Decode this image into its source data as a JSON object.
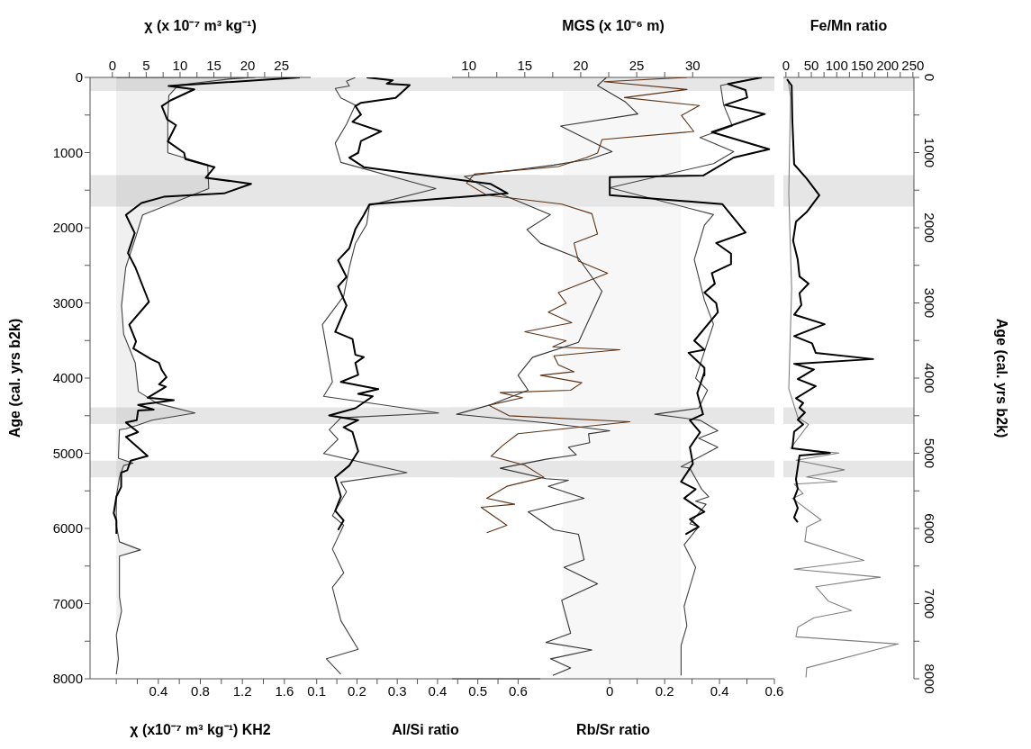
{
  "chart_data": [
    {
      "type": "line",
      "xlabel": "χ (x10⁻⁷ m³ kg⁻¹) KH2",
      "x2label": "χ (x 10⁻⁷ m³ kg⁻¹)",
      "ylabel": "Age (cal. yrs b2k)",
      "xlim": [
        -0.25,
        1.85
      ],
      "xticks": [
        {
          "value": 0,
          "label": null
        },
        {
          "value": 0.2,
          "label": null
        },
        0.4,
        {
          "value": 0.6,
          "label": null
        },
        0.8,
        {
          "value": 1.0,
          "label": null
        },
        1.2,
        {
          "value": 1.4,
          "label": null
        },
        1.6
      ],
      "x2lim": [
        -3.3,
        29.3
      ],
      "x2ticks": [
        0,
        {
          "value": 2.5,
          "label": null
        },
        5,
        {
          "value": 7.5,
          "label": null
        },
        10,
        {
          "value": 12.5,
          "label": null
        },
        15,
        {
          "value": 17.5,
          "label": null
        },
        20,
        {
          "value": 22.5,
          "label": null
        },
        25
      ],
      "ylim": [
        8000,
        0
      ],
      "yticks": [
        0,
        {
          "value": 500,
          "label": null
        },
        1000,
        {
          "value": 1500,
          "label": null
        },
        2000,
        {
          "value": 2500,
          "label": null
        },
        3000,
        {
          "value": 3500,
          "label": null
        },
        4000,
        {
          "value": 4500,
          "label": null
        },
        5000,
        {
          "value": 5500,
          "label": null
        },
        6000,
        {
          "value": 6500,
          "label": null
        },
        7000,
        {
          "value": 7500,
          "label": null
        },
        8000
      ],
      "bands": [
        {
          "axis": "y",
          "from": 0,
          "to": 180,
          "color": "#e6e6e6"
        },
        {
          "axis": "y",
          "from": 1300,
          "to": 1720,
          "color": "#e6e6e6"
        },
        {
          "axis": "y",
          "from": 4390,
          "to": 4610,
          "color": "#e6e6e6"
        },
        {
          "axis": "y",
          "from": 5100,
          "to": 5320,
          "color": "#e6e6e6"
        }
      ],
      "grid": false,
      "legend": false,
      "series": [
        {
          "type": "area",
          "color": "#404040",
          "x": [
            1.32,
            1.09,
            0.59,
            0.5,
            0.49,
            0.49,
            0.87,
            0.88,
            0.25,
            0.18,
            0.09,
            0.05,
            0.07,
            0.18,
            0.21,
            0.39,
            0.75,
            0.34,
            0.21,
            0.09,
            0.03,
            0.02,
            0.16,
            0.07,
            0.03,
            0.0,
            0.0,
            0.03,
            0.23,
            0.03,
            0.03,
            0.05,
            0.0,
            0.02,
            0.0
          ],
          "values": [
            0,
            19,
            102,
            241,
            559,
            1003,
            1162,
            1480,
            1829,
            2146,
            2527,
            3035,
            3416,
            3797,
            4178,
            4337,
            4464,
            4559,
            4623,
            4674,
            4686,
            5067,
            5131,
            5163,
            5321,
            5575,
            5956,
            6178,
            6286,
            6369,
            6909,
            7099,
            7417,
            7734,
            7938
          ]
        },
        {
          "axis": "x2",
          "color": "#000000",
          "x": [
            27.7,
            8.3,
            12.1,
            8.6,
            7.3,
            8.1,
            9.4,
            8.2,
            10.6,
            10.8,
            15.1,
            13.8,
            20.5,
            16.5,
            7.6,
            4.3,
            2.0,
            3.3,
            2.3,
            3.4,
            5.4,
            2.5,
            3.5,
            3.1,
            5.7,
            6.9,
            7.3,
            8.0,
            6.9,
            7.9,
            5.2,
            9.1,
            3.8,
            6.1,
            3.8,
            3.6,
            2.0,
            3.8,
            2.0,
            5.2,
            2.7,
            2.2,
            1.3,
            1.3,
            0.6,
            0.2,
            0.6,
            0.6
          ],
          "values": [
            0,
            114,
            159,
            305,
            381,
            559,
            635,
            851,
            1003,
            1086,
            1194,
            1334,
            1416,
            1543,
            1588,
            1670,
            1829,
            2070,
            2337,
            2527,
            2985,
            3289,
            3512,
            3607,
            3747,
            3797,
            3893,
            3988,
            4083,
            4115,
            4261,
            4293,
            4356,
            4420,
            4432,
            4559,
            4591,
            4718,
            4782,
            5036,
            5099,
            5226,
            5258,
            5448,
            5575,
            5798,
            5893,
            6071
          ]
        }
      ]
    },
    {
      "type": "line",
      "xlabel": "Al/Si ratio",
      "tick_labels": "x",
      "xlim": [
        0.085,
        0.655
      ],
      "xticks": [
        0.1,
        {
          "value": 0.15,
          "label": null
        },
        0.2,
        {
          "value": 0.25,
          "label": null
        },
        0.3,
        {
          "value": 0.35,
          "label": null
        },
        0.4,
        {
          "value": 0.45,
          "label": null
        },
        0.5,
        {
          "value": 0.55,
          "label": null
        },
        0.6
      ],
      "ylim": [
        8000,
        0
      ],
      "yticks": [
        0,
        1000,
        2000,
        3000,
        4000,
        5000,
        6000,
        7000,
        8000
      ],
      "bands": [
        {
          "axis": "y",
          "from": 0,
          "to": 180,
          "color": "#e6e6e6"
        },
        {
          "axis": "y",
          "from": 1300,
          "to": 1720,
          "color": "#e6e6e6"
        },
        {
          "axis": "y",
          "from": 4390,
          "to": 4610,
          "color": "#e6e6e6"
        },
        {
          "axis": "y",
          "from": 5100,
          "to": 5320,
          "color": "#e6e6e6"
        }
      ],
      "grid": false,
      "legend": false,
      "series": [
        {
          "color": "#404040",
          "x": [
            0.196,
            0.174,
            0.181,
            0.146,
            0.16,
            0.196,
            0.174,
            0.146,
            0.16,
            0.396,
            0.231,
            0.224,
            0.196,
            0.181,
            0.167,
            0.114,
            0.131,
            0.139,
            0.117,
            0.403,
            0.16,
            0.131,
            0.153,
            0.117,
            0.324,
            0.16,
            0.174,
            0.139,
            0.167,
            0.139,
            0.167,
            0.139,
            0.16,
            0.203,
            0.124,
            0.16
          ],
          "values": [
            0,
            51,
            114,
            146,
            273,
            368,
            622,
            876,
            1130,
            1480,
            1702,
            1956,
            2210,
            2527,
            2908,
            3289,
            3797,
            4051,
            4242,
            4464,
            4528,
            4686,
            4813,
            5004,
            5258,
            5385,
            5512,
            5829,
            5956,
            6274,
            6591,
            6782,
            7226,
            7607,
            7734,
            7938
          ]
        },
        {
          "color": "#000000",
          "x": [
            0.224,
            0.289,
            0.274,
            0.331,
            0.296,
            0.21,
            0.196,
            0.21,
            0.189,
            0.26,
            0.21,
            0.203,
            0.181,
            0.217,
            0.531,
            0.574,
            0.231,
            0.217,
            0.196,
            0.181,
            0.153,
            0.174,
            0.153,
            0.174,
            0.146,
            0.189,
            0.196,
            0.217,
            0.196,
            0.203,
            0.16,
            0.253,
            0.203,
            0.239,
            0.196,
            0.131,
            0.203,
            0.167,
            0.189,
            0.203,
            0.181,
            0.146,
            0.16,
            0.146,
            0.167,
            0.153
          ],
          "values": [
            0,
            38,
            83,
            102,
            273,
            337,
            381,
            495,
            591,
            718,
            845,
            1003,
            1067,
            1194,
            1416,
            1543,
            1689,
            1829,
            2019,
            2273,
            2432,
            2654,
            2781,
            3035,
            3384,
            3480,
            3690,
            3720,
            3797,
            3956,
            4051,
            4147,
            4210,
            4242,
            4401,
            4496,
            4559,
            4655,
            4718,
            4972,
            5163,
            5321,
            5575,
            5766,
            5893,
            6020
          ]
        }
      ]
    },
    {
      "type": "line",
      "xlabel": "Rb/Sr ratio",
      "x2label": "MGS (x 10⁻⁶ m)",
      "tick_labels": "x",
      "xlim": [
        -0.575,
        0.6
      ],
      "xticks": [
        0,
        {
          "value": 0.1,
          "label": null
        },
        0.2,
        {
          "value": 0.3,
          "label": null
        },
        0.4,
        {
          "value": 0.5,
          "label": null
        },
        0.6
      ],
      "x2lim": [
        8.5,
        37.3
      ],
      "x2ticks": [
        10,
        {
          "value": 12.5,
          "label": null
        },
        15,
        {
          "value": 17.5,
          "label": null
        },
        20,
        {
          "value": 22.5,
          "label": null
        },
        25,
        {
          "value": 27.5,
          "label": null
        },
        30
      ],
      "ylim": [
        8000,
        0
      ],
      "yticks": [
        0,
        1000,
        2000,
        3000,
        4000,
        5000,
        6000,
        7000,
        8000
      ],
      "bands": [
        {
          "axis": "x",
          "from": -0.17,
          "to": 0.26,
          "color": "#f7f7f7"
        },
        {
          "axis": "y",
          "from": 0,
          "to": 180,
          "color": "#e6e6e6"
        },
        {
          "axis": "y",
          "from": 1300,
          "to": 1720,
          "color": "#e6e6e6"
        },
        {
          "axis": "y",
          "from": 4390,
          "to": 4610,
          "color": "#e6e6e6"
        },
        {
          "axis": "y",
          "from": 5100,
          "to": 5320,
          "color": "#e6e6e6"
        }
      ],
      "grid": false,
      "legend": false,
      "series": [
        {
          "axis": "x2",
          "color": "#333333",
          "x": [
            22.3,
            21.5,
            24.0,
            25.1,
            18.2,
            22.8,
            20.8,
            17.6,
            9.6,
            11.8,
            17.3,
            15.2,
            16.4,
            19.8,
            21.9,
            19.8,
            15.7,
            14.4,
            15.3,
            11.8,
            8.9,
            17.3,
            22.6,
            20.7,
            20.8,
            18.9,
            19.6,
            16.9,
            12.8,
            16.9,
            18.9,
            17.1,
            20.3,
            15.3,
            17.6,
            19.8,
            20.3,
            18.5,
            21.5,
            18.3,
            19.1,
            16.9,
            21.0,
            17.3,
            19.1,
            17.5
          ],
          "values": [
            0,
            108,
            327,
            487,
            647,
            987,
            1086,
            1166,
            1318,
            1486,
            1825,
            2025,
            2205,
            2404,
            2844,
            3523,
            3723,
            3963,
            4161,
            4361,
            4481,
            4601,
            4701,
            4741,
            4860,
            4920,
            5020,
            5079,
            5199,
            5339,
            5359,
            5439,
            5598,
            5778,
            6018,
            6078,
            6417,
            6517,
            6737,
            6956,
            7396,
            7516,
            7616,
            7735,
            7855,
            7955
          ]
        },
        {
          "axis": "x2",
          "color": "#5c3317",
          "x": [
            29.5,
            22.1,
            29.5,
            23.9,
            30.6,
            29.0,
            30.1,
            21.9,
            21.5,
            20.5,
            18.0,
            10.5,
            9.8,
            11.6,
            18.3,
            21.0,
            21.5,
            19.4,
            19.8,
            22.4,
            18.0,
            18.7,
            17.1,
            19.2,
            15.0,
            18.7,
            17.5,
            23.5,
            17.6,
            18.0,
            19.4,
            16.4,
            20.1,
            19.1,
            12.8,
            14.8,
            11.8,
            13.6,
            24.4,
            14.4,
            13.0,
            12.0,
            15.0,
            16.7,
            13.4,
            11.6,
            14.1,
            11.1,
            13.4,
            11.6
          ],
          "values": [
            0,
            56,
            160,
            268,
            375,
            507,
            719,
            827,
            1006,
            1066,
            1186,
            1286,
            1406,
            1565,
            1685,
            1813,
            2084,
            2204,
            2444,
            2604,
            2863,
            3003,
            3123,
            3263,
            3383,
            3503,
            3583,
            3623,
            3703,
            3823,
            3915,
            3963,
            4061,
            4161,
            4193,
            4261,
            4361,
            4501,
            4580,
            4740,
            4900,
            5039,
            5159,
            5319,
            5439,
            5598,
            5678,
            5718,
            5958,
            6058
          ]
        },
        {
          "color": "#404040",
          "x": [
            0.549,
            0.404,
            0.415,
            0.447,
            0.329,
            0.452,
            0.378,
            0.0,
            0.378,
            0.345,
            0.308,
            0.345,
            0.378,
            0.313,
            0.356,
            0.324,
            0.164,
            0.329,
            0.394,
            0.324,
            0.394,
            0.26,
            0.292,
            0.335,
            0.361,
            0.313,
            0.351,
            0.292,
            0.324,
            0.271,
            0.313,
            0.271,
            0.281,
            0.26,
            0.26
          ],
          "values": [
            0,
            108,
            367,
            647,
            799,
            987,
            1146,
            1466,
            1825,
            1965,
            2424,
            2963,
            3283,
            4002,
            4161,
            4401,
            4481,
            4561,
            4700,
            4800,
            4920,
            5179,
            5199,
            5478,
            5578,
            5638,
            5678,
            5937,
            5977,
            6217,
            6517,
            7036,
            7296,
            7555,
            7955
          ]
        },
        {
          "color": "#000000",
          "x": [
            0.554,
            0.431,
            0.495,
            0.501,
            0.42,
            0.565,
            0.372,
            0.581,
            0.452,
            0.34,
            0.0,
            0.0,
            0.41,
            0.495,
            0.388,
            0.442,
            0.442,
            0.372,
            0.383,
            0.345,
            0.388,
            0.394,
            0.308,
            0.345,
            0.287,
            0.345,
            0.345,
            0.345,
            0.319,
            0.34,
            0.292,
            0.329,
            0.292,
            0.303,
            0.26,
            0.313,
            0.271,
            0.345,
            0.292,
            0.324,
            0.276
          ],
          "values": [
            0,
            88,
            168,
            268,
            367,
            487,
            727,
            955,
            1066,
            1306,
            1326,
            1565,
            1685,
            2064,
            2204,
            2344,
            2484,
            2604,
            2744,
            2863,
            3003,
            3123,
            3503,
            3623,
            3663,
            3863,
            3963,
            3922,
            4201,
            4481,
            4561,
            4721,
            4920,
            5139,
            5379,
            5478,
            5598,
            5778,
            5878,
            5978,
            6078
          ]
        }
      ]
    },
    {
      "type": "line",
      "xlabel": "Fe/Mn ratio",
      "ylabel": "Age (cal. yrs b2k)",
      "xlim": [
        -5,
        252
      ],
      "xticks": [
        0,
        {
          "value": 25,
          "label": null
        },
        50,
        {
          "value": 75,
          "label": null
        },
        100,
        {
          "value": 125,
          "label": null
        },
        150,
        {
          "value": 175,
          "label": null
        },
        200,
        {
          "value": 225,
          "label": null
        },
        250
      ],
      "ylim": [
        8000,
        0
      ],
      "yticks": [
        0,
        {
          "value": 500,
          "label": null
        },
        1000,
        {
          "value": 1500,
          "label": null
        },
        2000,
        {
          "value": 2500,
          "label": null
        },
        3000,
        {
          "value": 3500,
          "label": null
        },
        4000,
        {
          "value": 4500,
          "label": null
        },
        5000,
        {
          "value": 5500,
          "label": null
        },
        6000,
        {
          "value": 6500,
          "label": null
        },
        7000,
        {
          "value": 7500,
          "label": null
        },
        8000
      ],
      "bands": [
        {
          "axis": "y",
          "from": 0,
          "to": 180,
          "color": "#e6e6e6"
        },
        {
          "axis": "y",
          "from": 1300,
          "to": 1720,
          "color": "#e6e6e6"
        },
        {
          "axis": "y",
          "from": 4390,
          "to": 4610,
          "color": "#e6e6e6"
        },
        {
          "axis": "y",
          "from": 5100,
          "to": 5320,
          "color": "#e6e6e6"
        }
      ],
      "grid": false,
      "legend": false,
      "series": [
        {
          "color": "#808080",
          "x": [
            4.2,
            9.2,
            5.6,
            11.3,
            5.6,
            23.3,
            44.5,
            9.2,
            104.5,
            19.8,
            115.1,
            40.9,
            101,
            16.2,
            33.9,
            12.7,
            69.2,
            40.9,
            37.4,
            153.9,
            16.2,
            185.7,
            58.6,
            83.3,
            129.2,
            55.1,
            23.3,
            19.8,
            221,
            40.9,
            39.5
          ],
          "values": [
            25,
            267,
            1537,
            2807,
            4140,
            4521,
            4616,
            4934,
            4997,
            5093,
            5220,
            5315,
            5378,
            5410,
            5537,
            5601,
            5886,
            5982,
            6172,
            6426,
            6541,
            6648,
            6775,
            6966,
            7093,
            7188,
            7315,
            7442,
            7537,
            7855,
            7982
          ]
        },
        {
          "color": "#000000",
          "x": [
            2.1,
            11.3,
            12.7,
            16.2,
            40.9,
            65.7,
            40.9,
            19.8,
            14.1,
            23.3,
            26.8,
            44.5,
            26.8,
            30.4,
            16.2,
            76.2,
            16.2,
            51.5,
            58.6,
            171.6,
            16.2,
            55.1,
            23.3,
            58.6,
            19.8,
            33.9,
            26.8,
            37.4,
            23.3,
            33.9,
            16.2,
            12.7,
            86.8,
            26.8,
            23.3,
            19.8,
            23.3,
            16.2,
            23.3,
            16.2,
            23.3
          ],
          "values": [
            25,
            108,
            584,
            1156,
            1346,
            1568,
            1791,
            1918,
            2172,
            2426,
            2648,
            2743,
            2870,
            3029,
            3156,
            3283,
            3442,
            3537,
            3664,
            3747,
            3810,
            3886,
            4013,
            4108,
            4267,
            4331,
            4394,
            4458,
            4553,
            4616,
            4712,
            4934,
            4997,
            5029,
            5188,
            5347,
            5474,
            5600,
            5728,
            5855,
            5918
          ]
        }
      ]
    }
  ]
}
